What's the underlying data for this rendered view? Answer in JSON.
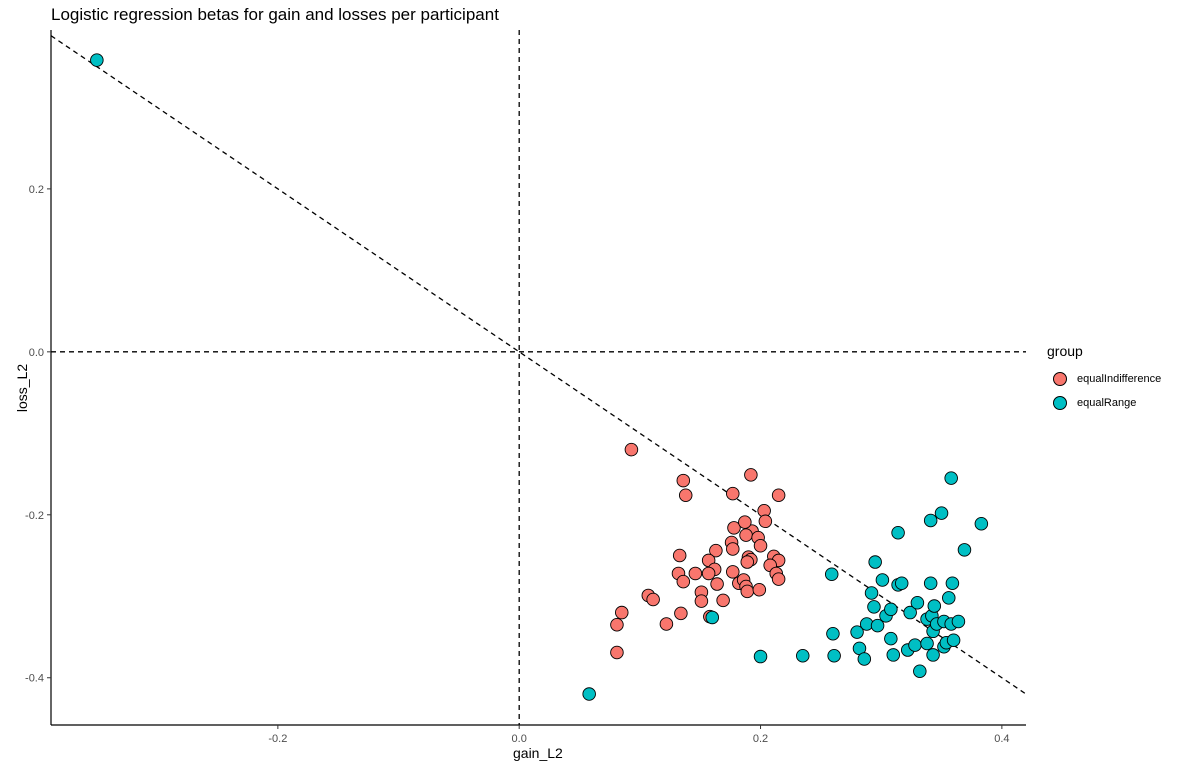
{
  "chart_data": {
    "type": "scatter",
    "title": "Logistic regression betas for gain and losses per participant",
    "xlabel": "gain_L2",
    "ylabel": "loss_L2",
    "xlim": [
      -0.388,
      0.42
    ],
    "ylim": [
      -0.458,
      0.395
    ],
    "x_ticks": [
      -0.2,
      0.0,
      0.2,
      0.4
    ],
    "y_ticks": [
      0.2,
      0.0,
      -0.2,
      -0.4
    ],
    "x_tick_labels": [
      "-0.2",
      "0.0",
      "0.2",
      "0.4"
    ],
    "y_tick_labels": [
      "0.2",
      "0.0",
      "-0.2",
      "-0.4"
    ],
    "grid": false,
    "legend": {
      "title": "group",
      "position": "right"
    },
    "reference_lines": [
      {
        "type": "vertical",
        "x": 0,
        "style": "dashed"
      },
      {
        "type": "horizontal",
        "y": 0,
        "style": "dashed"
      },
      {
        "type": "diagonal",
        "slope": -1,
        "intercept": 0,
        "style": "dashed"
      }
    ],
    "series": [
      {
        "name": "equalIndifference",
        "color": "#F8766D",
        "points": [
          [
            0.093,
            -0.12
          ],
          [
            0.136,
            -0.158
          ],
          [
            0.138,
            -0.176
          ],
          [
            0.192,
            -0.151
          ],
          [
            0.177,
            -0.174
          ],
          [
            0.215,
            -0.176
          ],
          [
            0.203,
            -0.195
          ],
          [
            0.204,
            -0.208
          ],
          [
            0.178,
            -0.216
          ],
          [
            0.193,
            -0.22
          ],
          [
            0.187,
            -0.209
          ],
          [
            0.188,
            -0.225
          ],
          [
            0.198,
            -0.228
          ],
          [
            0.2,
            -0.238
          ],
          [
            0.176,
            -0.234
          ],
          [
            0.177,
            -0.242
          ],
          [
            0.163,
            -0.244
          ],
          [
            0.133,
            -0.25
          ],
          [
            0.157,
            -0.256
          ],
          [
            0.19,
            -0.252
          ],
          [
            0.192,
            -0.255
          ],
          [
            0.189,
            -0.258
          ],
          [
            0.211,
            -0.251
          ],
          [
            0.215,
            -0.256
          ],
          [
            0.208,
            -0.262
          ],
          [
            0.162,
            -0.267
          ],
          [
            0.132,
            -0.272
          ],
          [
            0.146,
            -0.272
          ],
          [
            0.157,
            -0.272
          ],
          [
            0.177,
            -0.27
          ],
          [
            0.213,
            -0.272
          ],
          [
            0.215,
            -0.279
          ],
          [
            0.136,
            -0.282
          ],
          [
            0.164,
            -0.285
          ],
          [
            0.182,
            -0.284
          ],
          [
            0.186,
            -0.28
          ],
          [
            0.188,
            -0.288
          ],
          [
            0.189,
            -0.294
          ],
          [
            0.199,
            -0.292
          ],
          [
            0.151,
            -0.295
          ],
          [
            0.107,
            -0.299
          ],
          [
            0.111,
            -0.304
          ],
          [
            0.151,
            -0.306
          ],
          [
            0.169,
            -0.305
          ],
          [
            0.085,
            -0.32
          ],
          [
            0.134,
            -0.321
          ],
          [
            0.122,
            -0.334
          ],
          [
            0.158,
            -0.325
          ],
          [
            0.081,
            -0.335
          ],
          [
            0.081,
            -0.369
          ]
        ]
      },
      {
        "name": "equalRange",
        "color": "#00BFC4",
        "points": [
          [
            -0.35,
            0.358
          ],
          [
            0.058,
            -0.42
          ],
          [
            0.2,
            -0.374
          ],
          [
            0.235,
            -0.373
          ],
          [
            0.261,
            -0.373
          ],
          [
            0.16,
            -0.326
          ],
          [
            0.259,
            -0.273
          ],
          [
            0.26,
            -0.346
          ],
          [
            0.28,
            -0.344
          ],
          [
            0.282,
            -0.364
          ],
          [
            0.288,
            -0.334
          ],
          [
            0.286,
            -0.377
          ],
          [
            0.292,
            -0.296
          ],
          [
            0.294,
            -0.313
          ],
          [
            0.295,
            -0.258
          ],
          [
            0.297,
            -0.336
          ],
          [
            0.301,
            -0.28
          ],
          [
            0.304,
            -0.324
          ],
          [
            0.308,
            -0.316
          ],
          [
            0.308,
            -0.352
          ],
          [
            0.31,
            -0.372
          ],
          [
            0.314,
            -0.286
          ],
          [
            0.314,
            -0.222
          ],
          [
            0.317,
            -0.284
          ],
          [
            0.322,
            -0.366
          ],
          [
            0.324,
            -0.32
          ],
          [
            0.328,
            -0.36
          ],
          [
            0.33,
            -0.308
          ],
          [
            0.332,
            -0.392
          ],
          [
            0.338,
            -0.328
          ],
          [
            0.338,
            -0.358
          ],
          [
            0.341,
            -0.284
          ],
          [
            0.342,
            -0.324
          ],
          [
            0.341,
            -0.207
          ],
          [
            0.344,
            -0.312
          ],
          [
            0.343,
            -0.343
          ],
          [
            0.343,
            -0.372
          ],
          [
            0.346,
            -0.334
          ],
          [
            0.35,
            -0.198
          ],
          [
            0.352,
            -0.362
          ],
          [
            0.352,
            -0.331
          ],
          [
            0.354,
            -0.357
          ],
          [
            0.356,
            -0.302
          ],
          [
            0.358,
            -0.155
          ],
          [
            0.358,
            -0.334
          ],
          [
            0.359,
            -0.284
          ],
          [
            0.36,
            -0.354
          ],
          [
            0.364,
            -0.331
          ],
          [
            0.369,
            -0.243
          ],
          [
            0.383,
            -0.211
          ]
        ]
      }
    ]
  }
}
